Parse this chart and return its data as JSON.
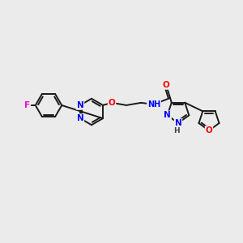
{
  "background_color": "#ebebeb",
  "bond_color": "#1a1a1a",
  "atom_colors": {
    "N": "#0000ff",
    "O": "#ff0000",
    "F": "#ff00cc",
    "H": "#404040"
  },
  "figsize": [
    3.0,
    3.0
  ],
  "dpi": 100
}
